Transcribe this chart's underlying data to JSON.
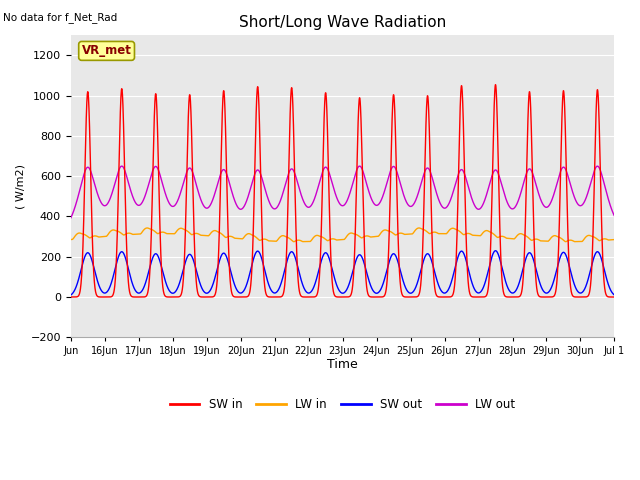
{
  "title": "Short/Long Wave Radiation",
  "subtitle": "No data for f_Net_Rad",
  "ylabel": "( W/m2)",
  "xlabel": "Time",
  "ylim": [
    -200,
    1300
  ],
  "yticks": [
    -200,
    0,
    200,
    400,
    600,
    800,
    1000,
    1200
  ],
  "background_color": "#ffffff",
  "plot_bg_color": "#e8e8e8",
  "title_fontsize": 11,
  "colors": {
    "SW_in": "#ff0000",
    "LW_in": "#ffa500",
    "SW_out": "#0000ff",
    "LW_out": "#cc00cc"
  },
  "legend_labels": [
    "SW in",
    "LW in",
    "SW out",
    "LW out"
  ],
  "vr_met_box": {
    "text": "VR_met",
    "facecolor": "#ffff99",
    "edgecolor": "#999900"
  },
  "n_days": 16,
  "samples_per_day": 288,
  "SW_in_peaks": [
    1020,
    1035,
    1010,
    1005,
    1025,
    1045,
    1040,
    1015,
    990,
    1005,
    1000,
    1050,
    1055,
    1020,
    1025,
    1030
  ],
  "SW_out_peaks": [
    220,
    225,
    215,
    212,
    218,
    228,
    225,
    220,
    210,
    215,
    215,
    228,
    230,
    220,
    222,
    225
  ],
  "LW_in_base": 295,
  "LW_out_base": 340,
  "LW_out_peak": 260,
  "line_width": 1.0,
  "tick_fontsize": 7,
  "ylabel_fontsize": 8,
  "xlabel_fontsize": 9
}
